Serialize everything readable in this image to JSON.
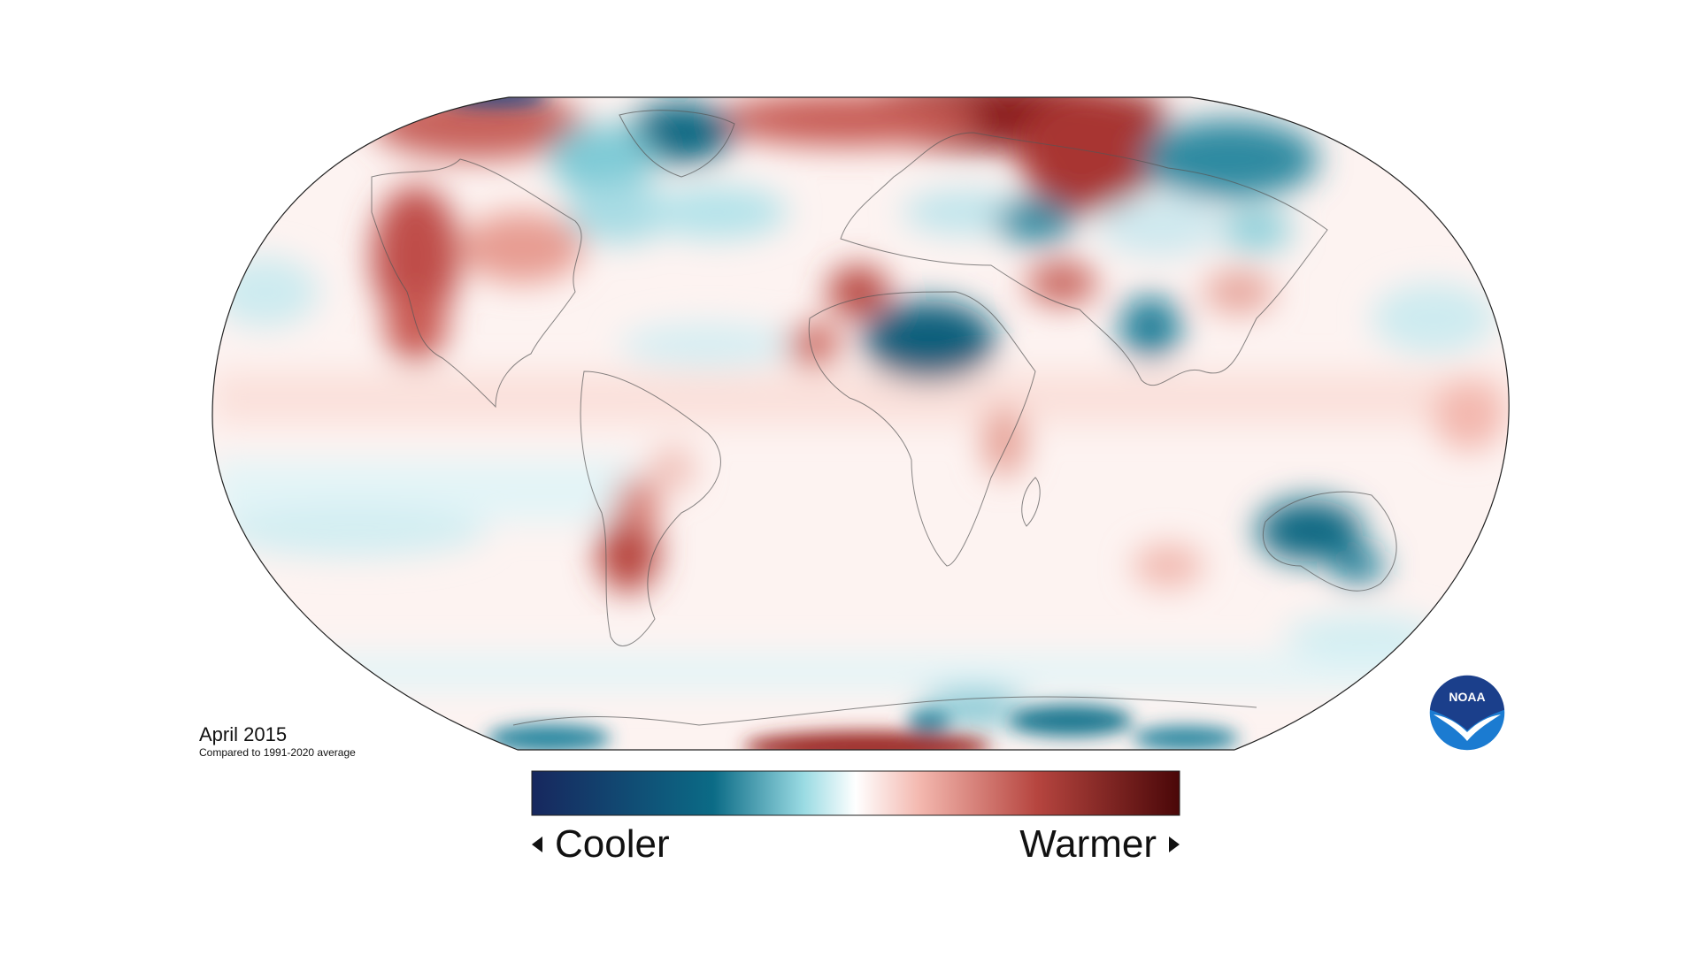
{
  "caption": {
    "title": "April 2015",
    "subtitle": "Compared to 1991-2020 average"
  },
  "scale": {
    "cool_label": "Cooler",
    "warm_label": "Warmer",
    "colors": [
      "#17275e",
      "#0b6b86",
      "#9adbe3",
      "#ffffff",
      "#f3b7ae",
      "#b6453f",
      "#4a0708"
    ]
  },
  "logo": {
    "text": "NOAA",
    "icon": "noaa-logo-icon",
    "colors": {
      "top": "#1b3f8b",
      "bottom": "#1b7bd1",
      "bird": "#ffffff"
    }
  },
  "map": {
    "projection": "Robinson",
    "anomaly_regions": [
      {
        "region": "Arctic north of Siberia",
        "anomaly": "warmer"
      },
      {
        "region": "Greenland",
        "anomaly": "cooler"
      },
      {
        "region": "Eastern Siberia",
        "anomaly": "cooler"
      },
      {
        "region": "Western North America / NE Pacific",
        "anomaly": "warmer"
      },
      {
        "region": "Sahara / Sahel",
        "anomaly": "cooler"
      },
      {
        "region": "Northwest Africa",
        "anomaly": "warmer"
      },
      {
        "region": "India",
        "anomaly": "cooler"
      },
      {
        "region": "Australia",
        "anomaly": "cooler"
      },
      {
        "region": "Southern South America",
        "anomaly": "warmer"
      },
      {
        "region": "Antarctica coast",
        "anomaly": "mixed"
      }
    ]
  }
}
